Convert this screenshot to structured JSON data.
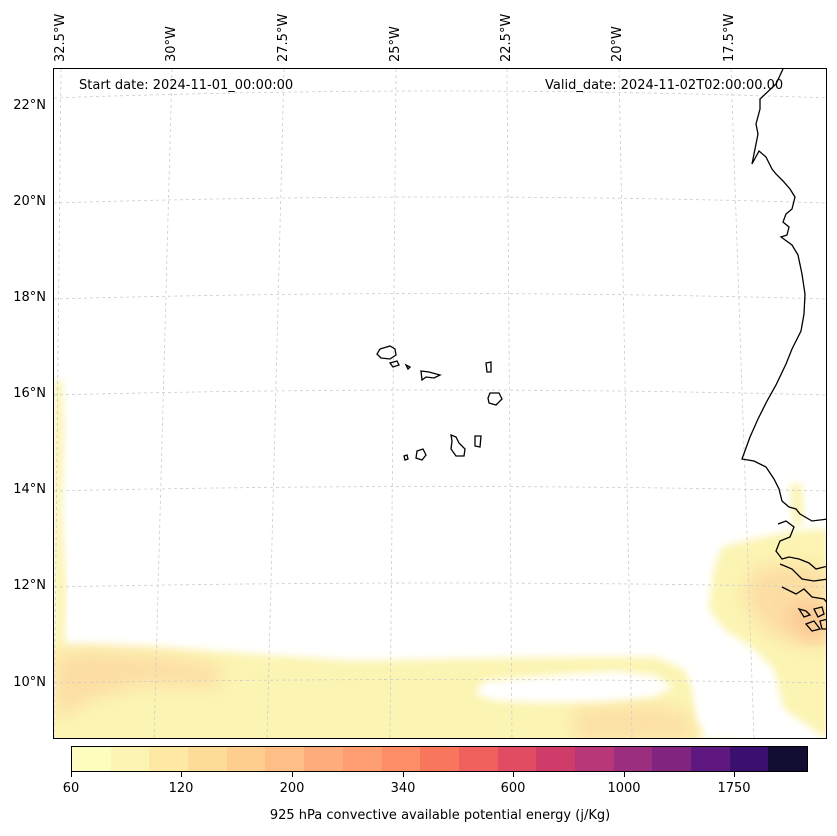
{
  "map": {
    "start_date": "Start date: 2024-11-01_00:00:00",
    "valid_date": "Valid_date: 2024-11-02T02:00:00.00",
    "projection": "lambert conformal",
    "extent": {
      "lon_min": -32.6,
      "lon_max": -15.7,
      "lat_min": 8.9,
      "lat_max": 22.8
    },
    "gridlines": true,
    "lat_labels": [
      "22°N",
      "20°N",
      "18°N",
      "16°N",
      "14°N",
      "12°N",
      "10°N"
    ],
    "lon_labels": [
      "32.5°W",
      "30°W",
      "27.5°W",
      "25°W",
      "22.5°W",
      "20°W",
      "17.5°W"
    ],
    "features": [
      "coastlines",
      "Cape Verde Islands",
      "West African coast"
    ],
    "field": "925 hPa CAPE",
    "field_colors": {
      "low": "#fcf4b2",
      "mid": "#fdd9a0",
      "high": "#fbb98b"
    }
  },
  "colorbar": {
    "title": "925 hPa convective available potential energy (j/Kg)",
    "tick_labels": [
      "60",
      "120",
      "200",
      "340",
      "600",
      "1000",
      "1750"
    ],
    "levels": [
      60,
      80,
      100,
      120,
      150,
      175,
      200,
      250,
      300,
      340,
      400,
      500,
      600,
      750,
      850,
      1000,
      1250,
      1500,
      1750,
      2000
    ],
    "colors": [
      "#fcfdbf",
      "#fcf4b2",
      "#fde9a4",
      "#fddc98",
      "#fece8e",
      "#febe85",
      "#feac7b",
      "#fe9e71",
      "#fd8d67",
      "#f8765c",
      "#f0605d",
      "#e24c62",
      "#d03c6a",
      "#b73779",
      "#9c2e7f",
      "#812581",
      "#5f187f",
      "#3b0f70",
      "#120d33"
    ]
  }
}
